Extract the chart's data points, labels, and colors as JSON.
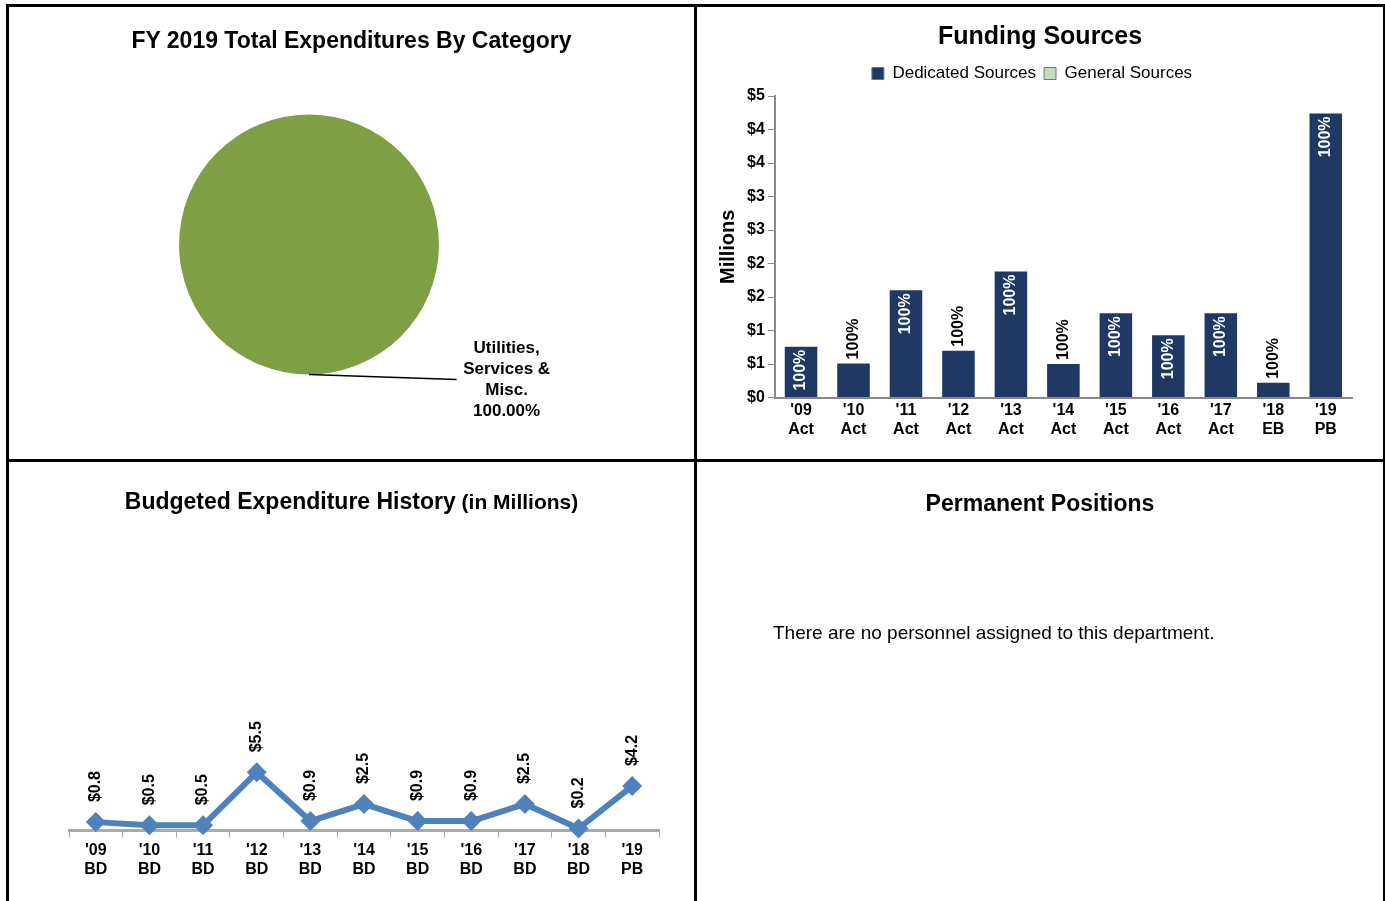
{
  "chart_data": [
    {
      "type": "pie",
      "title": "FY 2019 Total Expenditures By Category",
      "categories": [
        "Utilities, Services & Misc."
      ],
      "values": [
        100
      ],
      "colors": [
        "#7f9f45"
      ],
      "value_labels": [
        "100.00%"
      ],
      "legend": false
    },
    {
      "type": "bar",
      "title": "Funding Sources",
      "ylabel": "Millions",
      "categories": [
        "'09 Act",
        "'10 Act",
        "'11 Act",
        "'12 Act",
        "'13 Act",
        "'14 Act",
        "'15 Act",
        "'16 Act",
        "'17 Act",
        "'18 EB",
        "'19 PB"
      ],
      "stacked": true,
      "legend": "top",
      "grid": false,
      "ylim": [
        0,
        4.5
      ],
      "yticks": [
        {
          "value": 0,
          "label": "$0"
        },
        {
          "value": 0.5,
          "label": "$1"
        },
        {
          "value": 1,
          "label": "$1"
        },
        {
          "value": 1.5,
          "label": "$2"
        },
        {
          "value": 2,
          "label": "$2"
        },
        {
          "value": 2.5,
          "label": "$3"
        },
        {
          "value": 3,
          "label": "$3"
        },
        {
          "value": 3.5,
          "label": "$4"
        },
        {
          "value": 4,
          "label": "$4"
        },
        {
          "value": 4.5,
          "label": "$5"
        }
      ],
      "series": [
        {
          "name": "Dedicated Sources",
          "color": "#1f3864",
          "values": [
            0.76,
            0.51,
            1.6,
            0.7,
            1.88,
            0.5,
            1.26,
            0.93,
            1.26,
            0.22,
            4.24
          ]
        },
        {
          "name": "General Sources",
          "color": "#c9d9be",
          "values": [
            0,
            0,
            0,
            0,
            0,
            0,
            0,
            0,
            0,
            0,
            0
          ]
        }
      ],
      "annotations": [
        {
          "text": "100%",
          "x": "'09 Act",
          "y": 0.76
        },
        {
          "text": "100%",
          "x": "'10 Act",
          "y": 0.51
        },
        {
          "text": "100%",
          "x": "'11 Act",
          "y": 1.6
        },
        {
          "text": "100%",
          "x": "'12 Act",
          "y": 0.7
        },
        {
          "text": "100%",
          "x": "'13 Act",
          "y": 1.88
        },
        {
          "text": "100%",
          "x": "'14 Act",
          "y": 0.5
        },
        {
          "text": "100%",
          "x": "'15 Act",
          "y": 1.26
        },
        {
          "text": "100%",
          "x": "'16 Act",
          "y": 0.93
        },
        {
          "text": "100%",
          "x": "'17 Act",
          "y": 1.26
        },
        {
          "text": "100%",
          "x": "'18 EB",
          "y": 0.22
        },
        {
          "text": "100%",
          "x": "'19 PB",
          "y": 4.24
        }
      ]
    },
    {
      "type": "line",
      "title": "Budgeted Expenditure History",
      "subtitle": "(in Millions)",
      "categories": [
        "'09 BD",
        "'10 BD",
        "'11 BD",
        "'12 BD",
        "'13 BD",
        "'14 BD",
        "'15 BD",
        "'16 BD",
        "'17 BD",
        "'18 BD",
        "'19 PB"
      ],
      "tick_labels": "x",
      "grid": false,
      "legend": false,
      "marker": "diamond",
      "line_style": "solid",
      "series": [
        {
          "color": "#4f81bd",
          "values": [
            0.8,
            0.5,
            0.5,
            5.5,
            0.9,
            2.5,
            0.9,
            0.9,
            2.5,
            0.2,
            4.2
          ],
          "value_labels": [
            "$0.8",
            "$0.5",
            "$0.5",
            "$5.5",
            "$0.9",
            "$2.5",
            "$0.9",
            "$0.9",
            "$2.5",
            "$0.2",
            "$4.2"
          ]
        }
      ]
    },
    {
      "type": "other",
      "title": "Permanent Positions",
      "annotations": [
        "There are no personnel assigned to this department."
      ]
    }
  ]
}
